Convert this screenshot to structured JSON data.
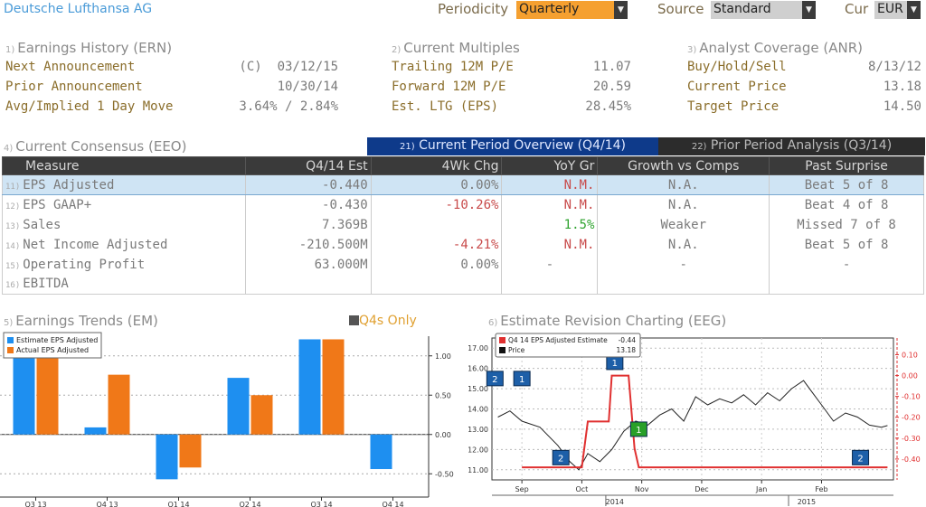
{
  "header": {
    "company": "Deutsche Lufthansa AG",
    "periodicity_label": "Periodicity",
    "periodicity_value": "Quarterly",
    "source_label": "Source",
    "source_value": "Standard",
    "cur_label": "Cur",
    "cur_value": "EUR"
  },
  "earnings_history": {
    "num": "1)",
    "title": "Earnings History (ERN)",
    "rows": [
      {
        "label": "Next Announcement",
        "value": "(C)  03/12/15"
      },
      {
        "label": "Prior Announcement",
        "value": "10/30/14"
      },
      {
        "label": "Avg/Implied 1 Day Move",
        "value": "3.64% / 2.84%"
      }
    ]
  },
  "current_multiples": {
    "num": "2)",
    "title": "Current Multiples",
    "rows": [
      {
        "label": "Trailing 12M P/E",
        "value": "11.07"
      },
      {
        "label": "Forward 12M P/E",
        "value": "20.59"
      },
      {
        "label": "Est. LTG (EPS)",
        "value": "28.45%"
      }
    ]
  },
  "analyst_coverage": {
    "num": "3)",
    "title": "Analyst Coverage (ANR)",
    "rows": [
      {
        "label": "Buy/Hold/Sell",
        "value": "8/13/12"
      },
      {
        "label": "Current Price",
        "value": "13.18"
      },
      {
        "label": "Target Price",
        "value": "14.50"
      }
    ]
  },
  "consensus": {
    "num": "4)",
    "title": "Current Consensus (EEO)",
    "tab_current_num": "21)",
    "tab_current": "Current Period Overview (Q4/14)",
    "tab_prior_num": "22)",
    "tab_prior": "Prior Period Analysis (Q3/14)",
    "columns": [
      "Measure",
      "Q4/14 Est",
      "4Wk Chg",
      "YoY Gr",
      "Growth vs Comps",
      "Past Surprise"
    ],
    "rows": [
      {
        "num": "11)",
        "measure": "EPS Adjusted",
        "est": "-0.440",
        "chg": "0.00%",
        "yoy": "N.M.",
        "comps": "N.A.",
        "surprise": "Beat 5 of 8"
      },
      {
        "num": "12)",
        "measure": "EPS GAAP+",
        "est": "-0.430",
        "chg": "-10.26%",
        "yoy": "N.M.",
        "comps": "N.A.",
        "surprise": "Beat 4 of 8"
      },
      {
        "num": "13)",
        "measure": "Sales",
        "est": "7.369B",
        "chg": "",
        "yoy": "1.5%",
        "comps": "Weaker",
        "surprise": "Missed 7 of 8"
      },
      {
        "num": "14)",
        "measure": "Net Income Adjusted",
        "est": "-210.500M",
        "chg": "-4.21%",
        "yoy": "N.M.",
        "comps": "N.A.",
        "surprise": "Beat 5 of 8"
      },
      {
        "num": "15)",
        "measure": "Operating Profit",
        "est": "63.000M",
        "chg": "0.00%",
        "yoy": "-",
        "comps": "-",
        "surprise": "-"
      },
      {
        "num": "16)",
        "measure": "EBITDA",
        "est": "",
        "chg": "",
        "yoy": "",
        "comps": "",
        "surprise": ""
      }
    ]
  },
  "earnings_trends": {
    "num": "5)",
    "title": "Earnings Trends (EM)",
    "toggle_label": "Q4s Only"
  },
  "estimate_revision": {
    "num": "6)",
    "title": "Estimate Revision Charting (EEG)"
  },
  "colors": {
    "estimate": "#1e8ff0",
    "actual": "#f07818",
    "estimate_line": "#e03030",
    "price_line": "#222222",
    "header_blue": "#4a9bd8",
    "dropdown_orange": "#f5a030"
  },
  "chart_data": [
    {
      "type": "bar",
      "categories": [
        "Q3 13",
        "Q4 13",
        "Q1 14",
        "Q2 14",
        "Q3 14",
        "Q4 14"
      ],
      "series": [
        {
          "name": "Estimate EPS Adjusted",
          "values": [
            1.14,
            0.09,
            -0.57,
            0.72,
            1.21,
            -0.44
          ]
        },
        {
          "name": "Actual EPS Adjusted",
          "values": [
            0.99,
            0.76,
            -0.42,
            0.5,
            1.21,
            null
          ]
        }
      ],
      "y_ticks": [
        "1.00",
        "0.50",
        "0.00",
        "-0.50"
      ],
      "ylim": [
        -0.75,
        1.25
      ],
      "legend": "top-left"
    },
    {
      "type": "line",
      "legend_entries": [
        {
          "label": "Q4 14 EPS Adjusted Estimate",
          "value": "-0.44"
        },
        {
          "label": "Price",
          "value": "13.18"
        }
      ],
      "x_ticks": [
        "Sep",
        "Oct",
        "Nov",
        "Dec",
        "Jan",
        "Feb"
      ],
      "year_labels": [
        "2014",
        "2015"
      ],
      "left_ticks": [
        "17.00",
        "16.00",
        "15.00",
        "14.00",
        "13.00",
        "12.00",
        "11.00"
      ],
      "right_ticks": [
        "0.10",
        "0.00",
        "-0.10",
        "-0.20",
        "-0.30",
        "-0.40"
      ],
      "left_ylim": [
        10.5,
        17.5
      ],
      "right_ylim": [
        -0.5,
        0.18
      ],
      "estimate_series": [
        [
          0,
          -0.44
        ],
        [
          1.0,
          -0.44
        ],
        [
          1.1,
          -0.22
        ],
        [
          1.45,
          -0.22
        ],
        [
          1.5,
          0.0
        ],
        [
          1.78,
          0.0
        ],
        [
          1.88,
          -0.35
        ],
        [
          1.95,
          -0.44
        ],
        [
          6.1,
          -0.44
        ]
      ],
      "price_series": [
        [
          -0.4,
          13.6
        ],
        [
          -0.2,
          13.9
        ],
        [
          0,
          13.4
        ],
        [
          0.3,
          13.1
        ],
        [
          0.6,
          12.2
        ],
        [
          0.8,
          11.4
        ],
        [
          0.95,
          11.0
        ],
        [
          1.1,
          11.8
        ],
        [
          1.3,
          11.4
        ],
        [
          1.5,
          12.0
        ],
        [
          1.7,
          12.9
        ],
        [
          1.9,
          13.4
        ],
        [
          2.1,
          13.2
        ],
        [
          2.3,
          13.7
        ],
        [
          2.5,
          14.0
        ],
        [
          2.7,
          13.4
        ],
        [
          2.9,
          14.6
        ],
        [
          3.1,
          14.2
        ],
        [
          3.3,
          14.5
        ],
        [
          3.5,
          14.3
        ],
        [
          3.7,
          14.7
        ],
        [
          3.9,
          14.2
        ],
        [
          4.1,
          14.8
        ],
        [
          4.3,
          14.4
        ],
        [
          4.5,
          15.0
        ],
        [
          4.7,
          15.4
        ],
        [
          4.85,
          14.8
        ],
        [
          5.0,
          14.2
        ],
        [
          5.2,
          13.4
        ],
        [
          5.4,
          13.8
        ],
        [
          5.6,
          13.6
        ],
        [
          5.8,
          13.2
        ],
        [
          6.0,
          13.1
        ],
        [
          6.1,
          13.18
        ]
      ],
      "markers": [
        {
          "label": "2",
          "x": -0.45,
          "y": 15.5,
          "color": "blue"
        },
        {
          "label": "1",
          "x": 0.0,
          "y": 15.5,
          "color": "blue"
        },
        {
          "label": "2",
          "x": 0.65,
          "y": 11.6,
          "color": "blue"
        },
        {
          "label": "1",
          "x": 1.55,
          "y": 16.3,
          "color": "blue"
        },
        {
          "label": "1",
          "x": 1.95,
          "y": 13.0,
          "color": "green"
        },
        {
          "label": "2",
          "x": 5.65,
          "y": 11.6,
          "color": "blue"
        }
      ]
    }
  ]
}
